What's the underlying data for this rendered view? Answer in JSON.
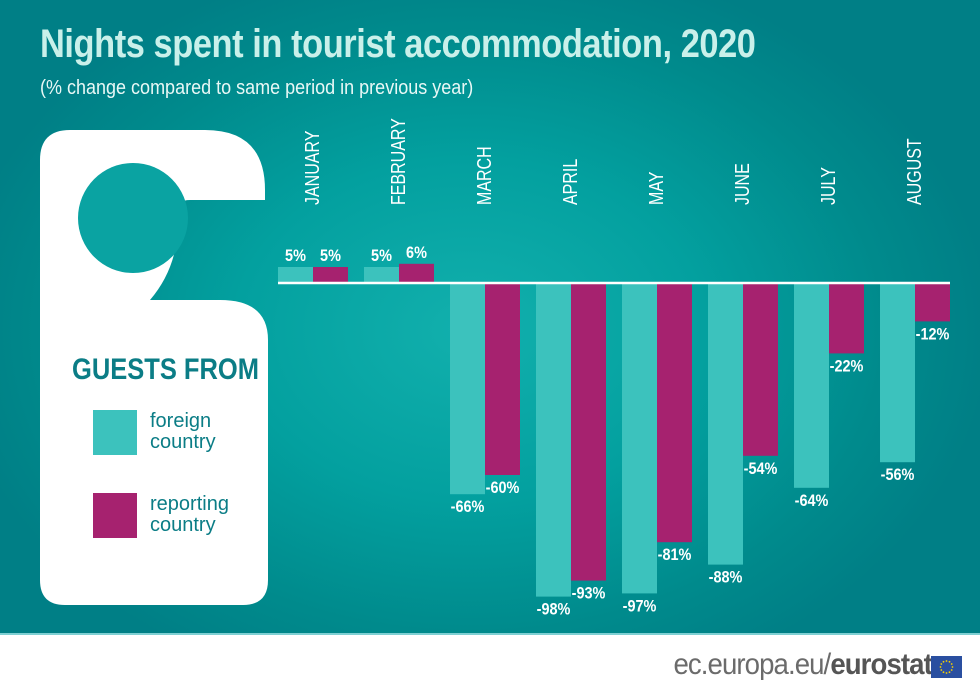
{
  "title": "Nights spent in tourist accommodation, 2020",
  "subtitle": "(% change compared to same period in previous year)",
  "legend": {
    "title": "GUESTS FROM",
    "items": [
      "foreign\ncountry",
      "reporting\ncountry"
    ]
  },
  "footer": {
    "url_prefix": "ec.europa.eu/",
    "url_brand": "eurostat"
  },
  "colors": {
    "foreign": "#3cc2bd",
    "reporting": "#a6226f",
    "background": "#03a09f"
  },
  "chart_data": {
    "type": "bar",
    "categories": [
      "JANUARY",
      "FEBRUARY",
      "MARCH",
      "APRIL",
      "MAY",
      "JUNE",
      "JULY",
      "AUGUST"
    ],
    "series": [
      {
        "name": "foreign country",
        "values": [
          5,
          5,
          -66,
          -98,
          -97,
          -88,
          -64,
          -56
        ]
      },
      {
        "name": "reporting country",
        "values": [
          5,
          6,
          -60,
          -93,
          -81,
          -54,
          -22,
          -12
        ]
      }
    ],
    "labels": [
      [
        "5%",
        "5%",
        "-66%",
        "-98%",
        "-97%",
        "-88%",
        "-64%",
        "-56%"
      ],
      [
        "5%",
        "6%",
        "-60%",
        "-93%",
        "-81%",
        "-54%",
        "-22%",
        "-12%"
      ]
    ],
    "ylim": [
      -100,
      10
    ],
    "grid": false,
    "legend_position": "left"
  }
}
